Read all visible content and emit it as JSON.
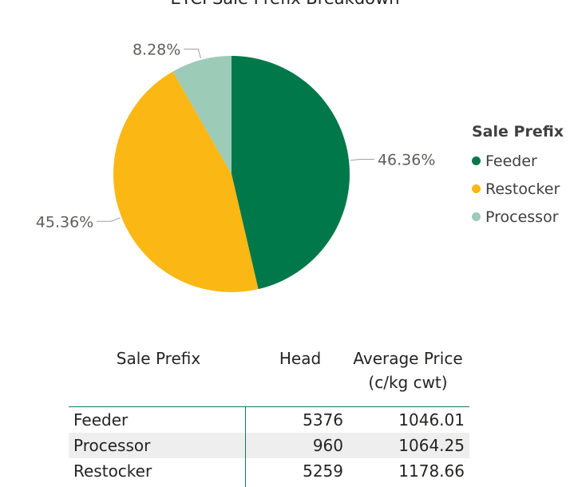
{
  "chart_data": {
    "type": "pie",
    "title": "EYCI Sale Prefix Breakdown",
    "legend_title": "Sale Prefix",
    "legend_position": "right",
    "slices": [
      {
        "name": "Feeder",
        "value": 46.36,
        "label": "46.36%",
        "color": "#00784a"
      },
      {
        "name": "Restocker",
        "value": 45.36,
        "label": "45.36%",
        "color": "#fbb714"
      },
      {
        "name": "Processor",
        "value": 8.28,
        "label": "8.28%",
        "color": "#9ccbb8"
      }
    ]
  },
  "table": {
    "headers": {
      "prefix": "Sale Prefix",
      "head": "Head",
      "price_line1": "Average Price",
      "price_line2": "(c/kg cwt)"
    },
    "rows": [
      {
        "prefix": "Feeder",
        "head": "5376",
        "price": "1046.01"
      },
      {
        "prefix": "Processor",
        "head": "960",
        "price": "1064.25"
      },
      {
        "prefix": "Restocker",
        "head": "5259",
        "price": "1178.66"
      }
    ]
  }
}
